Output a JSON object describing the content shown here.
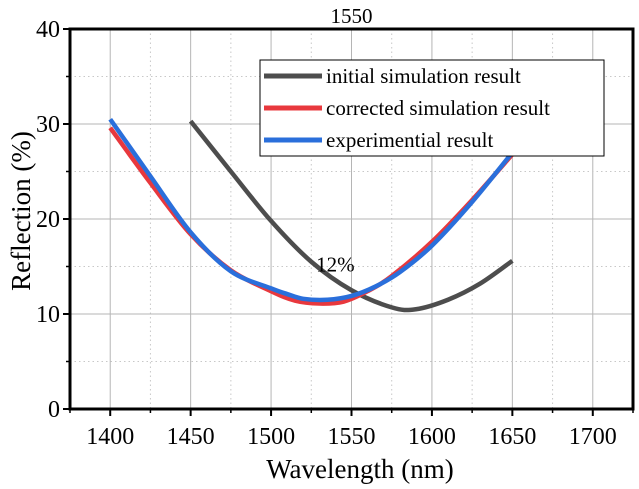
{
  "chart_data": {
    "type": "line",
    "title": "",
    "xlabel": "Wavelength (nm)",
    "ylabel": "Reflection (%)",
    "xlim": [
      1375,
      1725
    ],
    "ylim": [
      0,
      40
    ],
    "x_ticks": [
      "1400",
      "1450",
      "1500",
      "1550",
      "1600",
      "1650",
      "1700"
    ],
    "x_tick_values": [
      1400,
      1450,
      1500,
      1550,
      1600,
      1650,
      1700
    ],
    "y_ticks": [
      "0",
      "10",
      "20",
      "30",
      "40"
    ],
    "y_tick_values": [
      0,
      10,
      20,
      30,
      40
    ],
    "grid": true,
    "legend_position": "top-right",
    "annotations": [
      {
        "text": "1550",
        "x": 1550,
        "y": 40,
        "position": "above-plot"
      },
      {
        "text": "12%",
        "x": 1540,
        "y": 14.5
      }
    ],
    "series": [
      {
        "name": "initial simulation result",
        "color": "#4d4d4d",
        "x": [
          1450,
          1475,
          1500,
          1525,
          1550,
          1575,
          1590,
          1610,
          1630,
          1650
        ],
        "y": [
          30.3,
          25.0,
          19.8,
          15.5,
          12.5,
          10.7,
          10.5,
          11.5,
          13.2,
          15.6
        ]
      },
      {
        "name": "corrected simulation result",
        "color": "#e8383d",
        "x": [
          1400,
          1425,
          1450,
          1475,
          1500,
          1515,
          1530,
          1545,
          1560,
          1575,
          1600,
          1625,
          1650
        ],
        "y": [
          29.6,
          23.8,
          18.4,
          14.6,
          12.4,
          11.4,
          11.1,
          11.3,
          12.4,
          14.0,
          17.6,
          22.0,
          26.8
        ]
      },
      {
        "name": "experimential result",
        "color": "#2a6fdb",
        "x": [
          1400,
          1425,
          1450,
          1475,
          1500,
          1510,
          1520,
          1535,
          1550,
          1565,
          1580,
          1600,
          1625,
          1650
        ],
        "y": [
          30.5,
          24.5,
          18.6,
          14.5,
          12.7,
          12.1,
          11.6,
          11.5,
          11.9,
          12.9,
          14.4,
          17.2,
          21.8,
          27.0
        ]
      }
    ]
  }
}
